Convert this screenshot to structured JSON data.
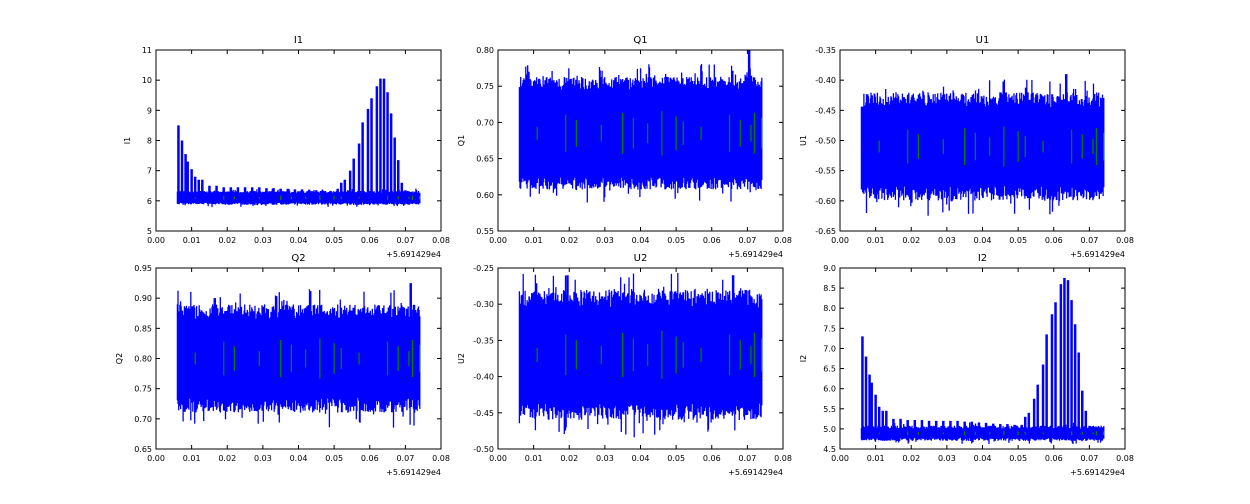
{
  "chart_data": [
    {
      "type": "line",
      "title": "I1",
      "ylabel": "I1",
      "xlim": [
        0,
        0.08
      ],
      "ylim": [
        5,
        11
      ],
      "xticks": [
        "0.00",
        "0.01",
        "0.02",
        "0.03",
        "0.04",
        "0.05",
        "0.06",
        "0.07",
        "0.08"
      ],
      "yticks": [
        "5",
        "6",
        "7",
        "8",
        "9",
        "10",
        "11"
      ],
      "x_offset": "+5.691429e4",
      "band": [
        5.95,
        6.25
      ],
      "jitter": 0.08,
      "peaks": [
        [
          0.0063,
          8.5
        ],
        [
          0.0073,
          8.0
        ],
        [
          0.0083,
          7.55
        ],
        [
          0.0089,
          7.3
        ],
        [
          0.01,
          7.05
        ],
        [
          0.011,
          6.8
        ],
        [
          0.012,
          6.7
        ],
        [
          0.013,
          6.7
        ],
        [
          0.015,
          6.5
        ],
        [
          0.017,
          6.5
        ],
        [
          0.019,
          6.45
        ],
        [
          0.021,
          6.45
        ],
        [
          0.023,
          6.45
        ],
        [
          0.025,
          6.45
        ],
        [
          0.027,
          6.45
        ],
        [
          0.029,
          6.45
        ],
        [
          0.031,
          6.42
        ],
        [
          0.033,
          6.42
        ],
        [
          0.035,
          6.4
        ],
        [
          0.037,
          6.4
        ],
        [
          0.039,
          6.38
        ],
        [
          0.041,
          6.38
        ],
        [
          0.043,
          6.37
        ],
        [
          0.045,
          6.35
        ],
        [
          0.047,
          6.33
        ],
        [
          0.049,
          6.33
        ],
        [
          0.051,
          6.4
        ],
        [
          0.052,
          6.6
        ],
        [
          0.053,
          6.7
        ],
        [
          0.0545,
          7.0
        ],
        [
          0.0555,
          7.4
        ],
        [
          0.057,
          7.9
        ],
        [
          0.058,
          8.6
        ],
        [
          0.0595,
          9.05
        ],
        [
          0.0605,
          9.4
        ],
        [
          0.062,
          9.8
        ],
        [
          0.063,
          10.05
        ],
        [
          0.064,
          10.05
        ],
        [
          0.065,
          9.6
        ],
        [
          0.066,
          8.9
        ],
        [
          0.067,
          8.1
        ],
        [
          0.068,
          7.35
        ],
        [
          0.069,
          6.6
        ],
        [
          0.07,
          6.35
        ],
        [
          0.071,
          6.2
        ]
      ]
    },
    {
      "type": "line",
      "title": "Q1",
      "ylabel": "Q1",
      "xlim": [
        0,
        0.08
      ],
      "ylim": [
        0.55,
        0.8
      ],
      "xticks": [
        "0.00",
        "0.01",
        "0.02",
        "0.03",
        "0.04",
        "0.05",
        "0.06",
        "0.07",
        "0.08"
      ],
      "yticks": [
        "0.55",
        "0.60",
        "0.65",
        "0.70",
        "0.75",
        "0.80"
      ],
      "x_offset": "+5.691429e4",
      "band": [
        0.625,
        0.745
      ],
      "jitter": 0.018,
      "peaks": [
        [
          0.0705,
          0.8
        ],
        [
          0.0145,
          0.76
        ]
      ]
    },
    {
      "type": "line",
      "title": "U1",
      "ylabel": "U1",
      "xlim": [
        0,
        0.08
      ],
      "ylim": [
        -0.65,
        -0.35
      ],
      "xticks": [
        "0.00",
        "0.01",
        "0.02",
        "0.03",
        "0.04",
        "0.05",
        "0.06",
        "0.07",
        "0.08"
      ],
      "yticks": [
        "-0.65",
        "-0.60",
        "-0.55",
        "-0.50",
        "-0.45",
        "-0.40",
        "-0.35"
      ],
      "x_offset": "+5.691429e4",
      "band": [
        -0.575,
        -0.445
      ],
      "jitter": 0.025,
      "peaks": [
        [
          0.0635,
          -0.39
        ]
      ]
    },
    {
      "type": "line",
      "title": "Q2",
      "ylabel": "Q2",
      "xlim": [
        0,
        0.08
      ],
      "ylim": [
        0.65,
        0.95
      ],
      "xticks": [
        "0.00",
        "0.01",
        "0.02",
        "0.03",
        "0.04",
        "0.05",
        "0.06",
        "0.07",
        "0.08"
      ],
      "yticks": [
        "0.65",
        "0.70",
        "0.75",
        "0.80",
        "0.85",
        "0.90",
        "0.95"
      ],
      "x_offset": "+5.691429e4",
      "band": [
        0.735,
        0.865
      ],
      "jitter": 0.025,
      "peaks": [
        [
          0.0715,
          0.925
        ],
        [
          0.0165,
          0.9
        ]
      ]
    },
    {
      "type": "line",
      "title": "U2",
      "ylabel": "U2",
      "xlim": [
        0,
        0.08
      ],
      "ylim": [
        -0.5,
        -0.25
      ],
      "xticks": [
        "0.00",
        "0.01",
        "0.02",
        "0.03",
        "0.04",
        "0.05",
        "0.06",
        "0.07",
        "0.08"
      ],
      "yticks": [
        "-0.50",
        "-0.45",
        "-0.40",
        "-0.35",
        "-0.30",
        "-0.25"
      ],
      "x_offset": "+5.691429e4",
      "band": [
        -0.435,
        -0.305
      ],
      "jitter": 0.025,
      "peaks": [
        [
          0.0195,
          -0.26
        ],
        [
          0.066,
          -0.26
        ]
      ]
    },
    {
      "type": "line",
      "title": "I2",
      "ylabel": "I2",
      "xlim": [
        0,
        0.08
      ],
      "ylim": [
        4.5,
        9.0
      ],
      "xticks": [
        "0.00",
        "0.01",
        "0.02",
        "0.03",
        "0.04",
        "0.05",
        "0.06",
        "0.07",
        "0.08"
      ],
      "yticks": [
        "4.5",
        "5.0",
        "5.5",
        "6.0",
        "6.5",
        "7.0",
        "7.5",
        "8.0",
        "8.5",
        "9.0"
      ],
      "x_offset": "+5.691429e4",
      "band": [
        4.78,
        5.0
      ],
      "jitter": 0.08,
      "peaks": [
        [
          0.0063,
          7.3
        ],
        [
          0.0073,
          6.8
        ],
        [
          0.0083,
          6.35
        ],
        [
          0.0089,
          6.15
        ],
        [
          0.01,
          5.85
        ],
        [
          0.011,
          5.55
        ],
        [
          0.012,
          5.45
        ],
        [
          0.013,
          5.45
        ],
        [
          0.015,
          5.25
        ],
        [
          0.017,
          5.25
        ],
        [
          0.019,
          5.22
        ],
        [
          0.021,
          5.22
        ],
        [
          0.023,
          5.22
        ],
        [
          0.025,
          5.2
        ],
        [
          0.027,
          5.2
        ],
        [
          0.029,
          5.2
        ],
        [
          0.031,
          5.2
        ],
        [
          0.033,
          5.2
        ],
        [
          0.035,
          5.18
        ],
        [
          0.037,
          5.18
        ],
        [
          0.039,
          5.16
        ],
        [
          0.041,
          5.15
        ],
        [
          0.043,
          5.13
        ],
        [
          0.045,
          5.12
        ],
        [
          0.047,
          5.12
        ],
        [
          0.049,
          5.1
        ],
        [
          0.051,
          5.1
        ],
        [
          0.052,
          5.3
        ],
        [
          0.053,
          5.4
        ],
        [
          0.0545,
          5.75
        ],
        [
          0.0555,
          6.1
        ],
        [
          0.057,
          6.6
        ],
        [
          0.058,
          7.35
        ],
        [
          0.0595,
          7.85
        ],
        [
          0.0605,
          8.15
        ],
        [
          0.062,
          8.6
        ],
        [
          0.063,
          8.75
        ],
        [
          0.064,
          8.7
        ],
        [
          0.065,
          8.2
        ],
        [
          0.066,
          7.6
        ],
        [
          0.067,
          6.9
        ],
        [
          0.068,
          5.95
        ],
        [
          0.069,
          5.45
        ],
        [
          0.07,
          5.0
        ]
      ]
    }
  ],
  "green_x": [
    0.011,
    0.019,
    0.022,
    0.029,
    0.035,
    0.038,
    0.042,
    0.046,
    0.05,
    0.052,
    0.057,
    0.065,
    0.068,
    0.071,
    0.072,
    0.074
  ],
  "colors": {
    "series": "#0000ff",
    "secondary": "#008000",
    "axes": "#000000"
  }
}
